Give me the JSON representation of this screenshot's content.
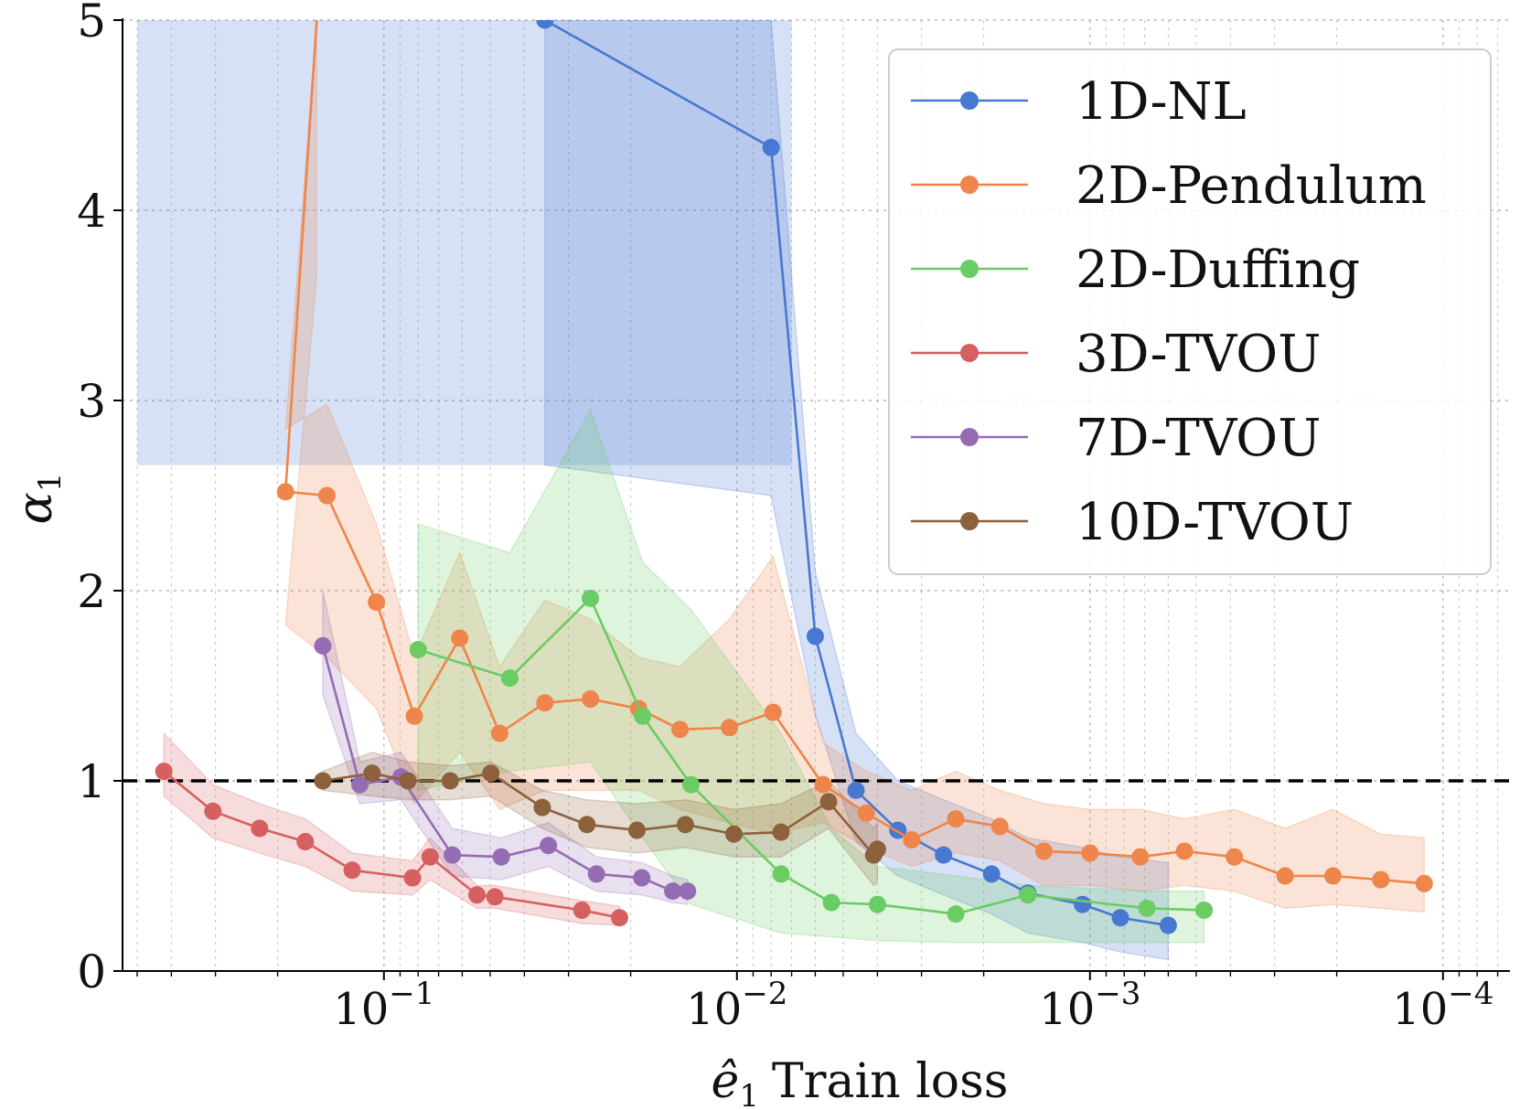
{
  "chart_data": {
    "type": "line",
    "title": "",
    "xlabel_prefix": "ê",
    "xlabel_sub": "1",
    "xlabel_text": "Train loss",
    "ylabel_main": "α",
    "ylabel_sub": "1",
    "xscale": "log",
    "x_reversed": true,
    "xlim": [
      0.55,
      6.5e-05
    ],
    "ylim": [
      0,
      5
    ],
    "yticks": [
      0,
      1,
      2,
      3,
      4,
      5
    ],
    "ytick_labels": [
      "0",
      "1",
      "2",
      "3",
      "4",
      "5"
    ],
    "xticks": [
      0.1,
      0.01,
      0.001,
      0.0001
    ],
    "xtick_base": "10",
    "xtick_exponents": [
      "−1",
      "−2",
      "−3",
      "−4"
    ],
    "grid": true,
    "reference_line": {
      "y": 1,
      "style": "dashed",
      "color": "#000000"
    },
    "legend_position": "top-right",
    "series": [
      {
        "name": "1D-NL",
        "color": "#4878d0",
        "x": [
          0.035,
          0.008,
          0.006,
          0.0046,
          0.0035,
          0.0026,
          0.0019,
          0.0015,
          0.00105,
          0.00082,
          0.0006
        ],
        "y": [
          5.0,
          4.33,
          1.76,
          0.95,
          0.74,
          0.61,
          0.51,
          0.41,
          0.35,
          0.28,
          0.24
        ],
        "band_upper": [
          5.0,
          5.0,
          2.1,
          1.25,
          1.0,
          0.9,
          0.8,
          0.7,
          0.65,
          0.6,
          0.57
        ],
        "band_lower": [
          2.66,
          2.5,
          1.35,
          0.68,
          0.5,
          0.4,
          0.3,
          0.2,
          0.15,
          0.1,
          0.06
        ],
        "band_top_fill": {
          "x": [
            0.5,
            0.007
          ],
          "y": 5.0
        }
      },
      {
        "name": "2D-Pendulum",
        "color": "#ee854a",
        "x": [
          0.155,
          0.19,
          0.145,
          0.105,
          0.082,
          0.061,
          0.047,
          0.035,
          0.026,
          0.019,
          0.0145,
          0.0105,
          0.0079,
          0.0057,
          0.0043,
          0.0032,
          0.0024,
          0.0018,
          0.00135,
          0.001,
          0.00072,
          0.00054,
          0.00039,
          0.00028,
          0.000205,
          0.00015,
          0.000113
        ],
        "y": [
          5.0,
          2.52,
          2.5,
          1.94,
          1.34,
          1.75,
          1.25,
          1.41,
          1.43,
          1.38,
          1.27,
          1.28,
          1.36,
          0.98,
          0.83,
          0.69,
          0.8,
          0.76,
          0.63,
          0.62,
          0.6,
          0.63,
          0.6,
          0.5,
          0.5,
          0.48,
          0.46
        ],
        "band_upper": [
          5.0,
          2.85,
          2.98,
          2.35,
          1.65,
          2.2,
          1.6,
          1.95,
          1.85,
          1.65,
          1.6,
          1.85,
          2.18,
          1.2,
          1.05,
          0.95,
          1.05,
          0.95,
          0.88,
          0.85,
          0.85,
          0.8,
          0.85,
          0.75,
          0.85,
          0.72,
          0.7
        ],
        "band_lower": [
          3.65,
          1.82,
          1.65,
          1.38,
          0.88,
          1.15,
          0.85,
          0.95,
          0.95,
          0.95,
          0.85,
          0.78,
          0.72,
          0.78,
          0.65,
          0.55,
          0.62,
          0.58,
          0.45,
          0.45,
          0.42,
          0.45,
          0.42,
          0.33,
          0.35,
          0.33,
          0.31
        ]
      },
      {
        "name": "2D-Duffing",
        "color": "#6acc64",
        "x": [
          0.08,
          0.044,
          0.026,
          0.0185,
          0.0135,
          0.0075,
          0.0054,
          0.004,
          0.0024,
          0.0015,
          0.00069,
          0.000475
        ],
        "y": [
          1.69,
          1.54,
          1.96,
          1.34,
          0.98,
          0.51,
          0.36,
          0.35,
          0.3,
          0.4,
          0.33,
          0.32
        ],
        "band_upper": [
          2.35,
          2.2,
          2.95,
          2.15,
          1.9,
          1.25,
          0.75,
          0.55,
          0.5,
          0.45,
          0.42,
          0.42
        ],
        "band_lower": [
          0.95,
          1.05,
          1.1,
          0.7,
          0.35,
          0.2,
          0.18,
          0.16,
          0.15,
          0.15,
          0.15,
          0.15
        ]
      },
      {
        "name": "3D-TVOU",
        "color": "#d65f5f",
        "x": [
          0.42,
          0.305,
          0.225,
          0.167,
          0.123,
          0.083,
          0.074,
          0.0545,
          0.0485,
          0.0275,
          0.0215
        ],
        "y": [
          1.05,
          0.84,
          0.75,
          0.68,
          0.53,
          0.49,
          0.6,
          0.4,
          0.39,
          0.32,
          0.28
        ],
        "band_upper": [
          1.25,
          0.98,
          0.88,
          0.8,
          0.62,
          0.58,
          0.7,
          0.45,
          0.45,
          0.37,
          0.34
        ],
        "band_lower": [
          0.92,
          0.7,
          0.62,
          0.55,
          0.42,
          0.4,
          0.48,
          0.33,
          0.33,
          0.25,
          0.24
        ]
      },
      {
        "name": "7D-TVOU",
        "color": "#956cb4",
        "x": [
          0.149,
          0.117,
          0.0895,
          0.064,
          0.0465,
          0.0342,
          0.025,
          0.0186,
          0.0152,
          0.0138
        ],
        "y": [
          1.71,
          0.98,
          1.02,
          0.61,
          0.6,
          0.66,
          0.51,
          0.49,
          0.42,
          0.42
        ],
        "band_upper": [
          2.0,
          1.1,
          1.15,
          0.75,
          0.7,
          0.78,
          0.6,
          0.57,
          0.5,
          0.48
        ],
        "band_lower": [
          1.45,
          0.88,
          0.9,
          0.5,
          0.48,
          0.55,
          0.42,
          0.4,
          0.36,
          0.35
        ]
      },
      {
        "name": "10D-TVOU",
        "color": "#8c613c",
        "x": [
          0.149,
          0.108,
          0.0855,
          0.0649,
          0.0498,
          0.0356,
          0.0266,
          0.0192,
          0.014,
          0.0102,
          0.0075,
          0.0055,
          0.0041,
          0.004
        ],
        "y": [
          1.0,
          1.04,
          1.0,
          1.0,
          1.04,
          0.86,
          0.77,
          0.74,
          0.77,
          0.72,
          0.73,
          0.89,
          0.61,
          0.64
        ],
        "band_upper": [
          1.05,
          1.15,
          1.1,
          1.08,
          1.1,
          0.95,
          0.9,
          0.88,
          0.9,
          0.85,
          0.88,
          1.0,
          0.75,
          0.78
        ],
        "band_lower": [
          0.95,
          0.92,
          0.9,
          0.9,
          0.92,
          0.75,
          0.65,
          0.62,
          0.65,
          0.6,
          0.6,
          0.75,
          0.45,
          0.47
        ]
      }
    ]
  }
}
